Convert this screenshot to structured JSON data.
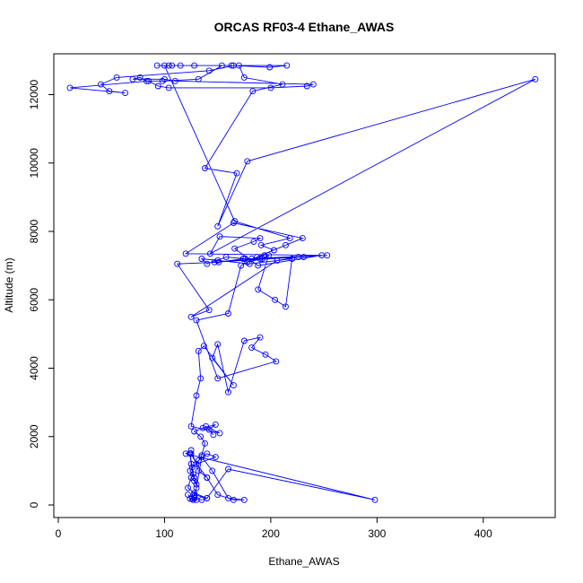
{
  "chart_data": {
    "type": "line",
    "title": "ORCAS RF03-4 Ethane_AWAS",
    "xlabel": "Ethane_AWAS",
    "ylabel": "Altitude (m)",
    "xlim": [
      0,
      450
    ],
    "ylim": [
      0,
      12800
    ],
    "xticks": [
      0,
      100,
      200,
      300,
      400
    ],
    "yticks": [
      0,
      2000,
      4000,
      6000,
      8000,
      10000,
      12000
    ],
    "grid": false,
    "legend": "none",
    "color": "#0000ff",
    "markers": "open-circle",
    "series": [
      {
        "x": [
          122,
          128,
          130,
          127,
          124,
          128,
          126,
          135,
          140,
          128,
          122,
          125,
          128,
          130,
          127,
          125,
          124,
          126,
          128,
          124,
          132,
          140,
          148,
          130,
          135,
          138,
          134,
          128,
          136,
          148,
          142,
          146,
          139,
          152,
          125,
          130,
          134,
          132,
          137,
          165,
          145,
          150,
          160,
          175,
          190,
          182,
          195,
          205,
          150,
          130,
          160,
          172,
          178,
          192,
          198,
          188,
          204,
          214,
          220,
          180,
          150,
          135,
          140,
          158,
          176,
          253,
          147,
          190,
          226,
          206,
          125,
          142,
          112,
          151,
          174,
          231,
          182,
          194,
          187,
          214,
          230,
          165,
          120,
          248,
          188,
          166,
          184,
          190,
          152,
          143,
          449,
          178,
          150,
          168,
          138,
          183,
          211,
          175,
          170,
          215,
          199,
          165,
          142,
          55,
          40,
          48,
          63,
          11,
          85,
          94,
          104,
          200,
          234,
          240,
          110,
          100,
          70,
          77,
          83,
          98,
          132,
          154,
          163,
          128,
          115,
          107,
          93,
          104,
          100,
          166,
          218,
          191,
          203
        ],
        "y": [
          300,
          200,
          150,
          150,
          180,
          250,
          180,
          150,
          200,
          350,
          500,
          800,
          700,
          600,
          900,
          1200,
          1500,
          1100,
          800,
          1000,
          1300,
          1500,
          1400,
          1200,
          1450,
          1800,
          2000,
          2150,
          2250,
          2350,
          2200,
          2050,
          2300,
          2100,
          2300,
          3200,
          3700,
          4500,
          4650,
          3500,
          4300,
          4700,
          3300,
          4800,
          4900,
          4600,
          4400,
          4200,
          3700,
          5400,
          5600,
          7000,
          7100,
          7200,
          7300,
          6300,
          6000,
          5800,
          7200,
          7050,
          7150,
          7200,
          7050,
          7250,
          7200,
          7300,
          7100,
          7200,
          7250,
          7150,
          5500,
          5700,
          7050,
          7100,
          7200,
          7250,
          7200,
          7300,
          7250,
          7600,
          7800,
          8250,
          7350,
          7300,
          7000,
          7500,
          7700,
          7800,
          7850,
          7350,
          12450,
          10050,
          8150,
          9700,
          9850,
          12100,
          12300,
          12500,
          12850,
          12850,
          12800,
          12850,
          12700,
          12500,
          12300,
          12100,
          12050,
          12200,
          12400,
          12250,
          12200,
          12200,
          12250,
          12300,
          12400,
          12450,
          12450,
          12500,
          12400,
          12400,
          12450,
          12850,
          12850,
          12850,
          12850,
          12850,
          12850,
          12850,
          12850,
          8300,
          7800,
          7600,
          7450
        ]
      },
      {
        "x": [
          125,
          130,
          140,
          150,
          165,
          175,
          160,
          145,
          135,
          130,
          128,
          140,
          160,
          298,
          120,
          125,
          132,
          140
        ],
        "y": [
          1500,
          1200,
          800,
          300,
          150,
          150,
          200,
          1000,
          1400,
          500,
          300,
          200,
          1050,
          150,
          1500,
          1600,
          1000,
          800
        ]
      }
    ]
  }
}
